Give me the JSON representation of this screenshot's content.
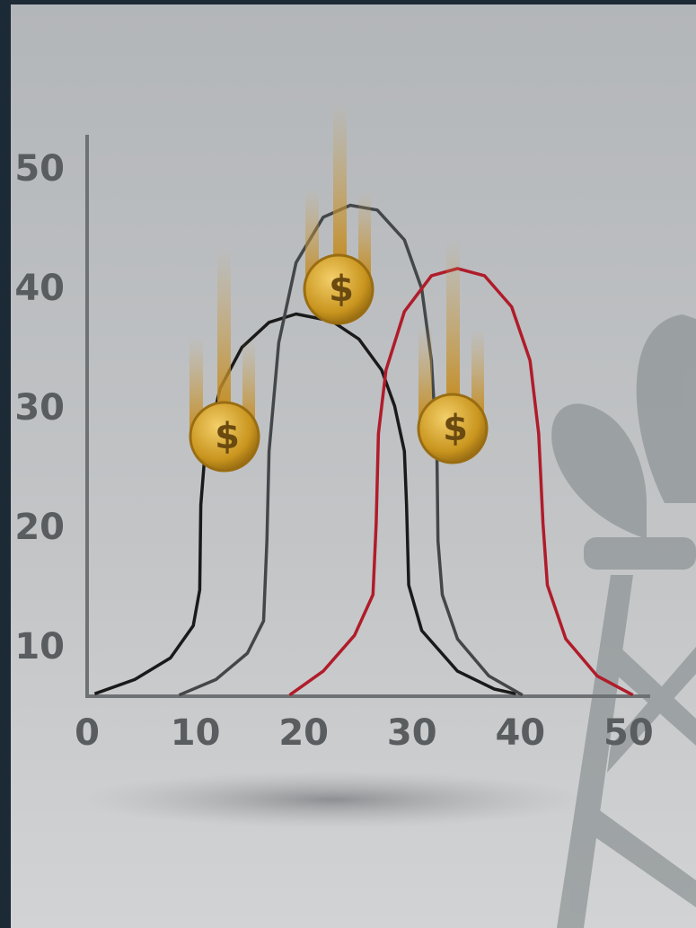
{
  "chart_data": {
    "type": "line",
    "xlim": [
      0,
      52
    ],
    "ylim": [
      6,
      53
    ],
    "xticks": [
      0,
      10,
      20,
      30,
      40,
      50
    ],
    "yticks": [
      10,
      20,
      30,
      40,
      50
    ],
    "coin_symbol": "$",
    "series": [
      {
        "color": "#1a1a1a",
        "x": [
          0.7,
          4.4,
          7.7,
          9.8,
          10.4,
          10.5,
          10.9,
          12.3,
          14.3,
          16.8,
          19.3,
          22.6,
          25.1,
          27.2,
          28.4,
          29.3,
          29.5,
          29.7,
          30.9,
          34.2,
          37.6,
          39.6
        ],
        "values": [
          6.2,
          7.4,
          9.2,
          11.9,
          14.9,
          22,
          26.5,
          31.8,
          35.2,
          37.3,
          38,
          37.4,
          35.9,
          33.3,
          30.3,
          26.5,
          22,
          15.3,
          11.5,
          8.1,
          6.6,
          6.2
        ]
      },
      {
        "color": "#444749",
        "x": [
          8.5,
          11.9,
          14.8,
          16.3,
          16.6,
          16.8,
          17.7,
          19.3,
          21.8,
          24.3,
          26.8,
          29.3,
          30.9,
          31.8,
          32.3,
          32.4,
          32.8,
          34.2,
          37.1,
          40.2
        ],
        "values": [
          6.1,
          7.4,
          9.6,
          12.3,
          19,
          26.5,
          35.6,
          42.3,
          46.1,
          47.1,
          46.7,
          44.2,
          40.1,
          34.1,
          26.5,
          19,
          14.5,
          10.8,
          7.7,
          6.1
        ]
      },
      {
        "color": "#b01c2a",
        "x": [
          18.7,
          21.8,
          24.7,
          26.4,
          26.7,
          26.9,
          27.6,
          29.3,
          31.8,
          34.2,
          36.7,
          39.2,
          40.9,
          41.7,
          42.1,
          42.5,
          44.2,
          47.1,
          50.4
        ],
        "values": [
          6.1,
          8.1,
          11.1,
          14.5,
          20.5,
          28,
          33.3,
          38.2,
          41.2,
          41.8,
          41.2,
          38.6,
          34.1,
          28,
          20.5,
          15.3,
          10.8,
          7.7,
          6.1
        ]
      }
    ]
  }
}
